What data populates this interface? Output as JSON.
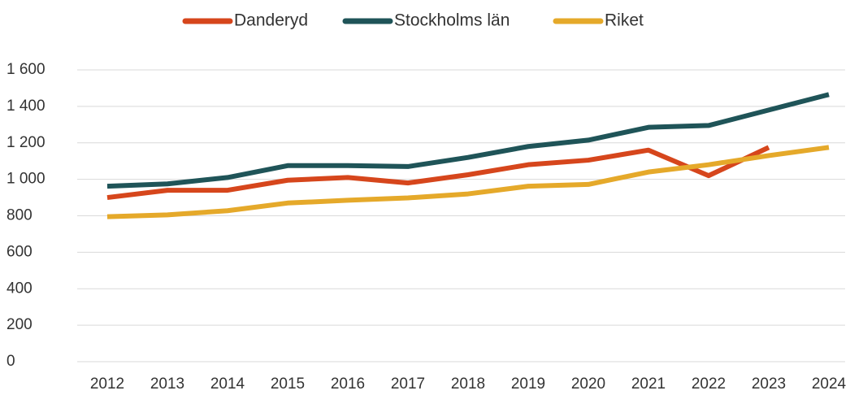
{
  "chart_data": {
    "type": "line",
    "categories": [
      "2012",
      "2013",
      "2014",
      "2015",
      "2016",
      "2017",
      "2018",
      "2019",
      "2020",
      "2021",
      "2022",
      "2023",
      "2024"
    ],
    "series": [
      {
        "name": "Danderyd",
        "color": "#d6461c",
        "values": [
          900,
          940,
          940,
          995,
          1010,
          980,
          1025,
          1080,
          1105,
          1160,
          1020,
          1175,
          null
        ]
      },
      {
        "name": "Stockholms län",
        "color": "#1f5458",
        "values": [
          962,
          975,
          1010,
          1075,
          1075,
          1070,
          1120,
          1180,
          1215,
          1285,
          1295,
          1380,
          1465
        ]
      },
      {
        "name": "Riket",
        "color": "#e5a92a",
        "values": [
          795,
          805,
          828,
          870,
          885,
          898,
          920,
          962,
          972,
          1040,
          1080,
          1130,
          1175
        ]
      }
    ],
    "ylim": [
      0,
      1600
    ],
    "yticks": [
      0,
      200,
      400,
      600,
      800,
      {
        "value": 1000,
        "label": "1 000"
      },
      {
        "value": 1200,
        "label": "1 200"
      },
      {
        "value": 1400,
        "label": "1 400"
      },
      {
        "value": 1600,
        "label": "1 600"
      }
    ],
    "grid": true,
    "legend": "top"
  }
}
